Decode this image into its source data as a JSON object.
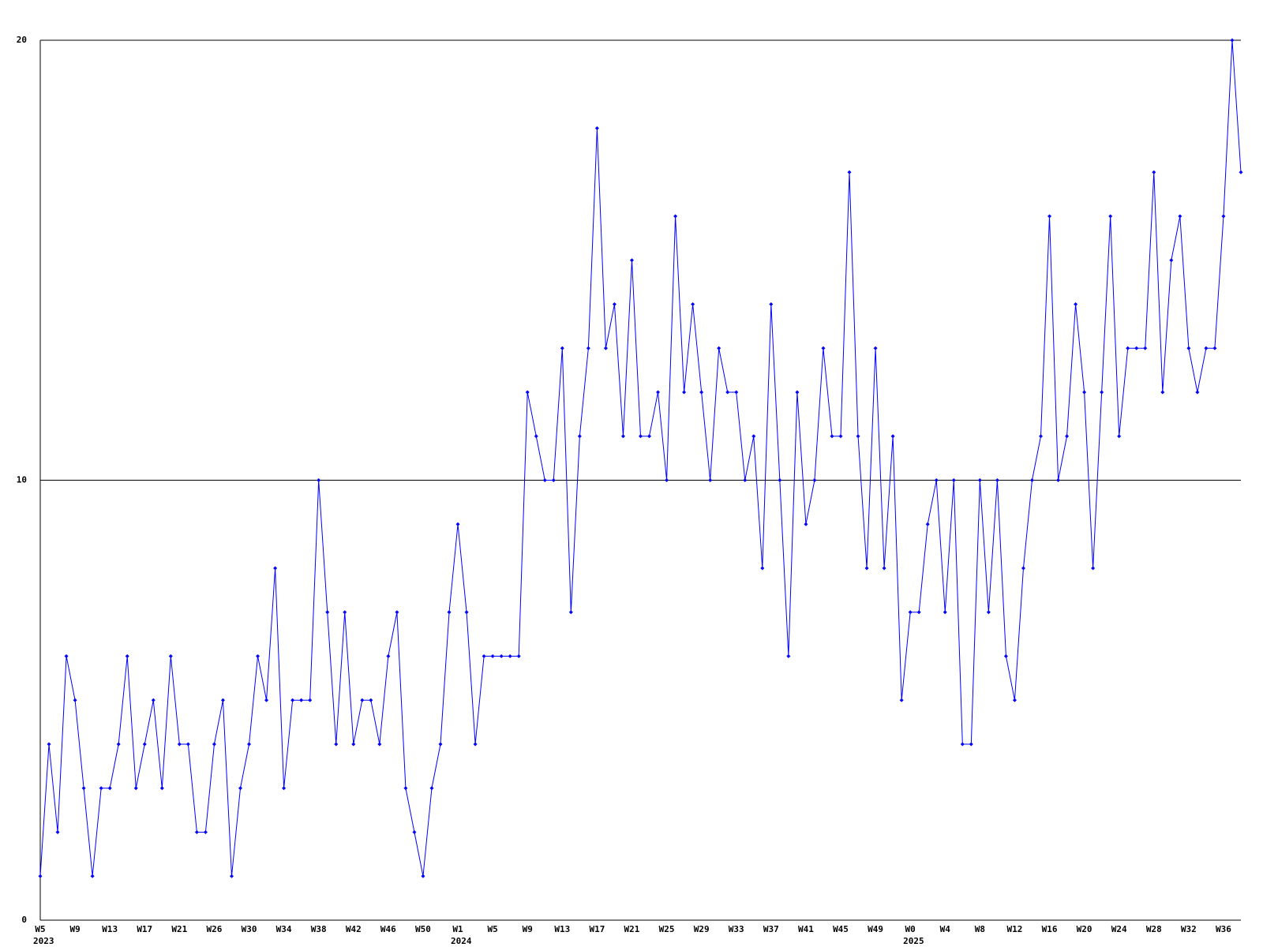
{
  "chart_data": {
    "type": "line",
    "color": "#0000ff",
    "grid": true,
    "ylim": [
      0,
      20
    ],
    "yticks": [
      0,
      10,
      20
    ],
    "categories": [
      "W5",
      null,
      null,
      null,
      "W9",
      null,
      null,
      null,
      "W13",
      null,
      null,
      null,
      "W17",
      null,
      null,
      null,
      "W21",
      null,
      null,
      null,
      "W26",
      null,
      null,
      null,
      "W30",
      null,
      null,
      null,
      "W34",
      null,
      null,
      null,
      "W38",
      null,
      null,
      null,
      "W42",
      null,
      null,
      null,
      "W46",
      null,
      null,
      null,
      "W50",
      null,
      null,
      null,
      "W1",
      null,
      null,
      null,
      "W5",
      null,
      null,
      null,
      "W9",
      null,
      null,
      null,
      "W13",
      null,
      null,
      null,
      "W17",
      null,
      null,
      null,
      "W21",
      null,
      null,
      null,
      "W25",
      null,
      null,
      null,
      "W29",
      null,
      null,
      null,
      "W33",
      null,
      null,
      null,
      "W37",
      null,
      null,
      null,
      "W41",
      null,
      null,
      null,
      "W45",
      null,
      null,
      null,
      "W49",
      null,
      null,
      null,
      "W0",
      null,
      null,
      null,
      "W4",
      null,
      null,
      null,
      "W8",
      null,
      null,
      null,
      "W12",
      null,
      null,
      null,
      "W16",
      null,
      null,
      null,
      "W20",
      null,
      null,
      null,
      "W24",
      null,
      null,
      null,
      "W28",
      null,
      null,
      null,
      "W32",
      null,
      null,
      null,
      "W36",
      null,
      null
    ],
    "years": [
      "2023",
      null,
      null,
      null,
      null,
      null,
      null,
      null,
      null,
      null,
      null,
      null,
      null,
      null,
      null,
      null,
      null,
      null,
      null,
      null,
      null,
      null,
      null,
      null,
      null,
      null,
      null,
      null,
      null,
      null,
      null,
      null,
      null,
      null,
      null,
      null,
      null,
      null,
      null,
      null,
      null,
      null,
      null,
      null,
      null,
      null,
      null,
      null,
      "2024",
      null,
      null,
      null,
      null,
      null,
      null,
      null,
      null,
      null,
      null,
      null,
      null,
      null,
      null,
      null,
      null,
      null,
      null,
      null,
      null,
      null,
      null,
      null,
      null,
      null,
      null,
      null,
      null,
      null,
      null,
      null,
      null,
      null,
      null,
      null,
      null,
      null,
      null,
      null,
      null,
      null,
      null,
      null,
      null,
      null,
      null,
      null,
      null,
      null,
      null,
      null,
      "2025",
      null,
      null,
      null,
      null,
      null,
      null,
      null,
      null,
      null,
      null,
      null,
      null,
      null,
      null,
      null,
      null,
      null,
      null,
      null,
      null,
      null,
      null,
      null,
      null,
      null,
      null,
      null,
      null,
      null,
      null,
      null,
      null,
      null,
      null,
      null,
      null,
      null,
      null
    ],
    "values": [
      1,
      4,
      2,
      6,
      5,
      3,
      1,
      3,
      3,
      4,
      6,
      3,
      4,
      5,
      3,
      6,
      4,
      4,
      2,
      2,
      4,
      5,
      1,
      3,
      4,
      6,
      5,
      8,
      3,
      5,
      5,
      5,
      10,
      7,
      4,
      7,
      4,
      5,
      5,
      4,
      6,
      7,
      3,
      2,
      1,
      3,
      4,
      7,
      9,
      7,
      4,
      6,
      6,
      6,
      6,
      6,
      12,
      11,
      10,
      10,
      13,
      7,
      11,
      13,
      18,
      13,
      14,
      11,
      15,
      11,
      11,
      12,
      10,
      16,
      12,
      14,
      12,
      10,
      13,
      12,
      12,
      10,
      11,
      8,
      14,
      10,
      6,
      12,
      9,
      10,
      13,
      11,
      11,
      17,
      11,
      8,
      13,
      8,
      11,
      5,
      7,
      7,
      9,
      10,
      7,
      10,
      4,
      4,
      10,
      7,
      10,
      6,
      5,
      8,
      10,
      11,
      16,
      10,
      11,
      14,
      12,
      8,
      12,
      16,
      11,
      13,
      13,
      13,
      17,
      12,
      15,
      16,
      13,
      12,
      13,
      13,
      16,
      20,
      17
    ]
  }
}
